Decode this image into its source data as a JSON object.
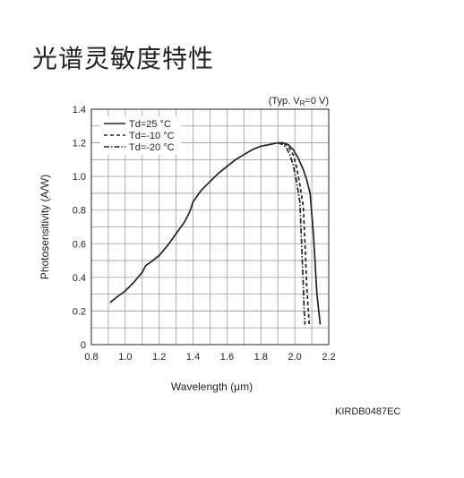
{
  "title": "光谱灵敏度特性",
  "figure_code": "KIRDB0487EC",
  "chart_data": {
    "type": "line",
    "note": "(Typ. V",
    "note_sub": "R",
    "note_tail": "=0 V)",
    "xlabel": "Wavelength (μm)",
    "ylabel": "Photosensitivity (A/W)",
    "xlim": [
      0.8,
      2.2
    ],
    "ylim": [
      0,
      1.4
    ],
    "grid": true,
    "legend_position": "top-left",
    "x_ticks": [
      "0.8",
      "1.0",
      "1.2",
      "1.4",
      "1.6",
      "1.8",
      "2.0",
      "2.2"
    ],
    "y_ticks": [
      "0",
      "0.2",
      "0.4",
      "0.6",
      "0.8",
      "1.0",
      "1.2",
      "1.4"
    ],
    "series": [
      {
        "name": "Td=25 °C",
        "dash": "solid",
        "x": [
          0.91,
          0.96,
          1.0,
          1.05,
          1.1,
          1.12,
          1.15,
          1.2,
          1.25,
          1.3,
          1.35,
          1.38,
          1.4,
          1.45,
          1.5,
          1.55,
          1.6,
          1.65,
          1.7,
          1.75,
          1.8,
          1.85,
          1.9,
          1.93,
          1.96,
          1.99,
          2.02,
          2.05,
          2.07,
          2.09,
          2.11,
          2.13,
          2.15
        ],
        "y": [
          0.25,
          0.29,
          0.32,
          0.37,
          0.43,
          0.47,
          0.49,
          0.53,
          0.59,
          0.66,
          0.73,
          0.79,
          0.85,
          0.92,
          0.97,
          1.02,
          1.06,
          1.1,
          1.13,
          1.16,
          1.18,
          1.19,
          1.2,
          1.2,
          1.19,
          1.16,
          1.11,
          1.04,
          0.98,
          0.9,
          0.65,
          0.3,
          0.12
        ]
      },
      {
        "name": "Td=-10 °C",
        "dash": "dashed",
        "x": [
          1.9,
          1.93,
          1.96,
          1.99,
          2.01,
          2.03,
          2.05,
          2.06,
          2.07,
          2.08,
          2.085
        ],
        "y": [
          1.2,
          1.2,
          1.18,
          1.13,
          1.06,
          0.95,
          0.82,
          0.6,
          0.35,
          0.2,
          0.12
        ]
      },
      {
        "name": "Td=-20 °C",
        "dash": "dashdot",
        "x": [
          1.9,
          1.93,
          1.95,
          1.97,
          1.99,
          2.01,
          2.03,
          2.04,
          2.05,
          2.055,
          2.06
        ],
        "y": [
          1.2,
          1.19,
          1.17,
          1.13,
          1.07,
          0.97,
          0.85,
          0.6,
          0.35,
          0.2,
          0.12
        ]
      }
    ]
  }
}
